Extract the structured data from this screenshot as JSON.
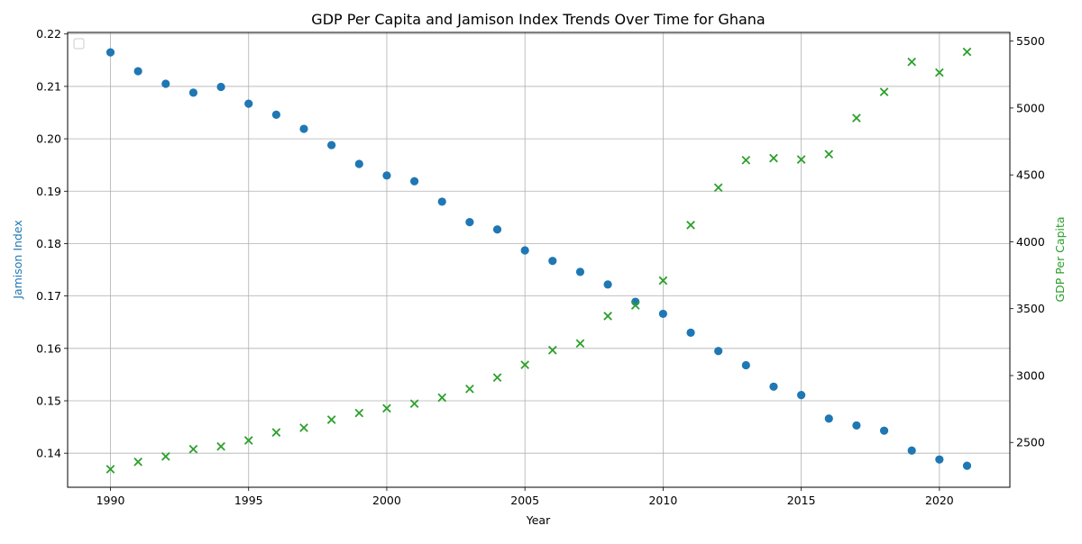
{
  "chart_data": {
    "type": "scatter",
    "title": "GDP Per Capita and Jamison Index Trends Over Time for Ghana",
    "xlabel": "Year",
    "ylabel_left": "Jamison Index",
    "ylabel_right": "GDP Per Capita",
    "xlim": [
      1988.45,
      2022.55
    ],
    "ylim_left": [
      0.1335,
      0.2203
    ],
    "ylim_right": [
      2165,
      5565
    ],
    "x_ticks": [
      1990,
      1995,
      2000,
      2005,
      2010,
      2015,
      2020
    ],
    "y_ticks_left": [
      0.14,
      0.15,
      0.16,
      0.17,
      0.18,
      0.19,
      0.2,
      0.21,
      0.22
    ],
    "y_ticks_right": [
      2500,
      3000,
      3500,
      4000,
      4500,
      5000,
      5500
    ],
    "grid": true,
    "legend": "top-left (empty)",
    "colors": {
      "jamison": "#1f77b4",
      "gdp": "#2ca02c"
    },
    "series": [
      {
        "axis": "left",
        "marker": "circle",
        "x": [
          1990,
          1991,
          1992,
          1993,
          1994,
          1995,
          1996,
          1997,
          1998,
          1999,
          2000,
          2001,
          2002,
          2003,
          2004,
          2005,
          2006,
          2007,
          2008,
          2009,
          2010,
          2011,
          2012,
          2013,
          2014,
          2015,
          2016,
          2017,
          2018,
          2019,
          2020,
          2021
        ],
        "values": [
          0.2165,
          0.2129,
          0.2105,
          0.2088,
          0.2099,
          0.2067,
          0.2046,
          0.2019,
          0.1988,
          0.1952,
          0.193,
          0.1919,
          0.188,
          0.1841,
          0.1827,
          0.1787,
          0.1767,
          0.1746,
          0.1722,
          0.1689,
          0.1666,
          0.163,
          0.1595,
          0.1568,
          0.1527,
          0.1511,
          0.1466,
          0.1453,
          0.1443,
          0.1405,
          0.1388,
          0.1376
        ]
      },
      {
        "axis": "right",
        "marker": "x",
        "x": [
          1990,
          1991,
          1992,
          1993,
          1994,
          1995,
          1996,
          1997,
          1998,
          1999,
          2000,
          2001,
          2002,
          2003,
          2004,
          2005,
          2006,
          2007,
          2008,
          2009,
          2010,
          2011,
          2012,
          2013,
          2014,
          2015,
          2016,
          2017,
          2018,
          2019,
          2020,
          2021
        ],
        "values": [
          2300,
          2355,
          2395,
          2450,
          2470,
          2515,
          2575,
          2610,
          2670,
          2720,
          2755,
          2790,
          2835,
          2900,
          2985,
          3080,
          3190,
          3240,
          3445,
          3525,
          3710,
          4125,
          4405,
          4610,
          4625,
          4615,
          4655,
          4925,
          5120,
          5345,
          5265,
          5420
        ]
      }
    ]
  }
}
